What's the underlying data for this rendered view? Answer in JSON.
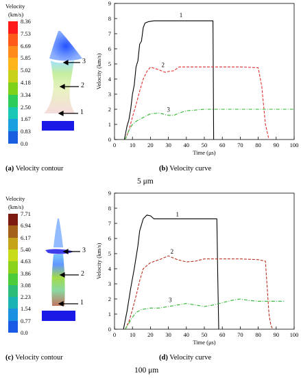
{
  "top": {
    "contour": {
      "legend_title": "Velocity",
      "legend_unit": "(km/s)",
      "legend_values": [
        "8.36",
        "7.53",
        "6.69",
        "5.85",
        "5.02",
        "4.18",
        "3.34",
        "2.50",
        "1.67",
        "0.83",
        "0.0"
      ],
      "legend_colors": [
        "#ff1a1a",
        "#ff5a1a",
        "#ff8c1a",
        "#ffb41a",
        "#c9d21a",
        "#7fd21a",
        "#2ecc5a",
        "#19c8b4",
        "#1a9fe0",
        "#1a5fe0",
        "#1a1ae6"
      ],
      "markers": [
        "3",
        "2",
        "1"
      ],
      "caption_letter": "(a)",
      "caption_text": "Velocity contour"
    },
    "curve_caption_letter": "(b)",
    "curve_caption_text": "Velocity curve",
    "size_label": "5 μm"
  },
  "bottom": {
    "contour": {
      "legend_title": "Velocity",
      "legend_unit": "(km/s)",
      "legend_values": [
        "7.71",
        "6.94",
        "6.17",
        "5.40",
        "4.63",
        "3.86",
        "3.08",
        "2.23",
        "1.54",
        "0.77",
        "0.0"
      ],
      "legend_colors": [
        "#7a1a10",
        "#a3621a",
        "#c6a41a",
        "#c8dc1a",
        "#8cd21a",
        "#4ccc3a",
        "#2ebc7a",
        "#1ab4b4",
        "#1a90e0",
        "#1a5ae6",
        "#1a1ae6"
      ],
      "markers": [
        "3",
        "2",
        "1"
      ],
      "caption_letter": "(c)",
      "caption_text": "Velocity contour"
    },
    "curve_caption_letter": "(d)",
    "curve_caption_text": "Velocity curve",
    "size_label": "100 μm"
  },
  "chart_data": [
    {
      "type": "line",
      "xlabel": "Time (μs)",
      "ylabel": "Velocity (km/s)",
      "xlim": [
        0,
        100
      ],
      "ylim": [
        0,
        9
      ],
      "xticks": [
        "0",
        "10",
        "20",
        "30",
        "40",
        "50",
        "60",
        "70",
        "80",
        "90",
        "100"
      ],
      "yticks": [
        "0",
        "1",
        "2",
        "3",
        "4",
        "5",
        "6",
        "7",
        "8",
        "9"
      ],
      "grid": false,
      "series": [
        {
          "name": "1",
          "color": "#000000",
          "dash": "solid",
          "x": [
            5.5,
            7,
            8,
            9,
            10,
            11,
            12,
            13,
            14,
            15,
            16,
            17,
            19,
            22,
            30,
            40,
            50,
            54.8,
            55,
            55.2
          ],
          "y": [
            0,
            0.9,
            1.3,
            2.0,
            3.0,
            3.6,
            4.8,
            5.2,
            6.3,
            6.5,
            7.4,
            7.7,
            7.8,
            7.85,
            7.85,
            7.85,
            7.85,
            7.85,
            4.0,
            0
          ]
        },
        {
          "name": "2",
          "color": "#e03030",
          "dash": "dashed",
          "x": [
            6,
            8,
            10,
            12,
            14,
            16,
            18,
            20,
            22,
            25,
            28,
            30,
            33,
            36,
            40,
            50,
            60,
            70,
            80,
            82,
            84,
            86
          ],
          "y": [
            0,
            0.6,
            1.5,
            2.3,
            3.2,
            4.0,
            4.5,
            4.78,
            4.72,
            4.6,
            4.45,
            4.5,
            4.55,
            4.8,
            4.8,
            4.8,
            4.8,
            4.8,
            4.75,
            3.5,
            1.0,
            0
          ]
        },
        {
          "name": "3",
          "color": "#2db32d",
          "dash": "dashdot",
          "x": [
            6,
            8,
            10,
            12,
            15,
            20,
            25,
            30,
            33,
            36,
            40,
            50,
            60,
            70,
            80,
            90,
            100
          ],
          "y": [
            0,
            0.6,
            1.0,
            1.2,
            1.4,
            1.7,
            1.75,
            1.6,
            1.6,
            1.75,
            1.9,
            2.0,
            2.0,
            2.0,
            2.0,
            2.0,
            2.0
          ]
        }
      ],
      "annotations": [
        {
          "text": "1",
          "x": 37,
          "y": 8.1
        },
        {
          "text": "2",
          "x": 27,
          "y": 4.8
        },
        {
          "text": "3",
          "x": 30,
          "y": 1.85
        }
      ]
    },
    {
      "type": "line",
      "xlabel": "Time (μs)",
      "ylabel": "Velocity (km/s)",
      "xlim": [
        0,
        100
      ],
      "ylim": [
        0,
        9
      ],
      "xticks": [
        "0",
        "10",
        "20",
        "30",
        "40",
        "50",
        "60",
        "70",
        "80",
        "90",
        "100"
      ],
      "yticks": [
        "0",
        "1",
        "2",
        "3",
        "4",
        "5",
        "6",
        "7",
        "8",
        "9"
      ],
      "grid": false,
      "series": [
        {
          "name": "1",
          "color": "#000000",
          "dash": "solid",
          "x": [
            5,
            7,
            9,
            11,
            13,
            14,
            16,
            18,
            20,
            22,
            30,
            40,
            50,
            57,
            57.5,
            58
          ],
          "y": [
            0,
            1.2,
            2.7,
            4.0,
            5.5,
            6.5,
            7.3,
            7.55,
            7.5,
            7.3,
            7.3,
            7.3,
            7.3,
            7.3,
            3.5,
            0
          ]
        },
        {
          "name": "2",
          "color": "#b83020",
          "dash": "dashed",
          "x": [
            6,
            8,
            10,
            12,
            14,
            16,
            18,
            20,
            25,
            30,
            35,
            40,
            45,
            50,
            60,
            70,
            80,
            84,
            86,
            87,
            88
          ],
          "y": [
            0,
            0.5,
            1.3,
            2.2,
            3.2,
            4.0,
            4.2,
            4.4,
            4.6,
            4.85,
            4.6,
            4.45,
            4.5,
            4.65,
            4.65,
            4.65,
            4.6,
            4.5,
            1.0,
            0.3,
            0
          ]
        },
        {
          "name": "3",
          "color": "#2db32d",
          "dash": "dashdot",
          "x": [
            6,
            8,
            10,
            12,
            15,
            20,
            25,
            30,
            35,
            40,
            45,
            50,
            55,
            60,
            65,
            70,
            75,
            80,
            90,
            95
          ],
          "y": [
            0,
            0.4,
            0.8,
            1.1,
            1.3,
            1.4,
            1.4,
            1.5,
            1.6,
            1.7,
            1.6,
            1.5,
            1.6,
            1.75,
            1.9,
            2.0,
            1.9,
            1.85,
            1.85,
            1.85
          ]
        }
      ],
      "annotations": [
        {
          "text": "1",
          "x": 35,
          "y": 7.45
        },
        {
          "text": "2",
          "x": 32,
          "y": 5.0
        },
        {
          "text": "3",
          "x": 31,
          "y": 1.8
        }
      ]
    }
  ]
}
